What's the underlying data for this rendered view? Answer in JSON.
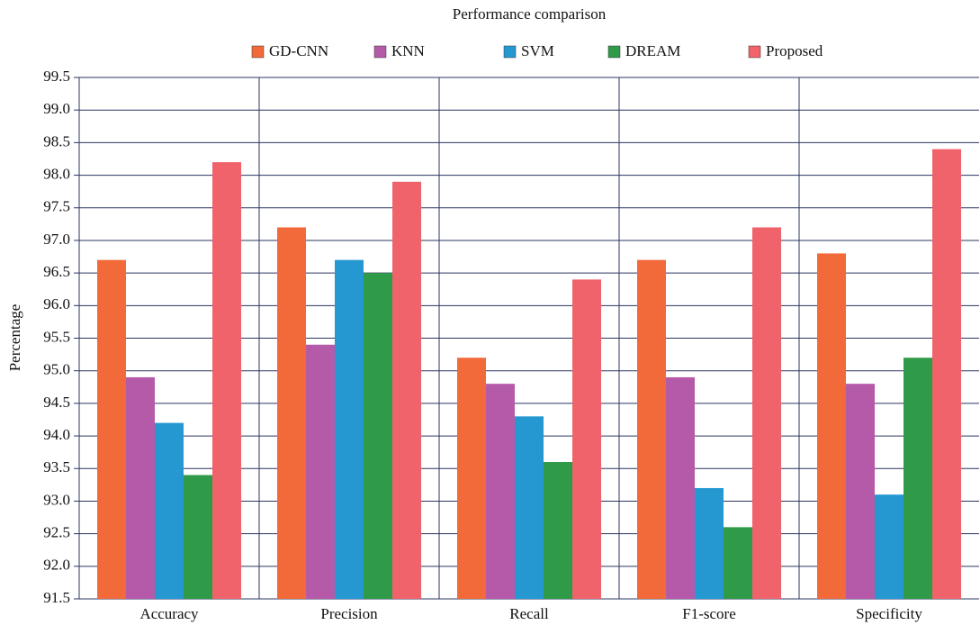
{
  "chart_data": {
    "type": "bar",
    "title": "Performance comparison",
    "ylabel": "Percentage",
    "categories": [
      "Accuracy",
      "Precision",
      "Recall",
      "F1-score",
      "Specificity"
    ],
    "series": [
      {
        "name": "GD-CNN",
        "color": "#f26a3a",
        "values": [
          96.7,
          97.2,
          95.2,
          96.7,
          96.8
        ]
      },
      {
        "name": "KNN",
        "color": "#b55aa8",
        "values": [
          94.9,
          95.4,
          94.8,
          94.9,
          94.8
        ]
      },
      {
        "name": "SVM",
        "color": "#2598d2",
        "values": [
          94.2,
          96.7,
          94.3,
          93.2,
          93.1
        ]
      },
      {
        "name": "DREAM",
        "color": "#2f9a48",
        "values": [
          93.4,
          96.5,
          93.6,
          92.6,
          95.2
        ]
      },
      {
        "name": "Proposed",
        "color": "#f0636a",
        "values": [
          98.2,
          97.9,
          96.4,
          97.2,
          98.4
        ]
      }
    ],
    "ylim": [
      91.5,
      99.5
    ],
    "yticks": [
      91.5,
      {
        "value": 92,
        "label": "92.0"
      },
      92.5,
      {
        "value": 93,
        "label": "93.0"
      },
      93.5,
      {
        "value": 94,
        "label": "94.0"
      },
      94.5,
      {
        "value": 95,
        "label": "95.0"
      },
      95.5,
      {
        "value": 96,
        "label": "96.0"
      },
      96.5,
      {
        "value": 97,
        "label": "97.0"
      },
      97.5,
      {
        "value": 98,
        "label": "98.0"
      },
      98.5,
      {
        "value": 99,
        "label": "99.0"
      },
      99.5
    ],
    "grid": true,
    "legend": "top"
  }
}
